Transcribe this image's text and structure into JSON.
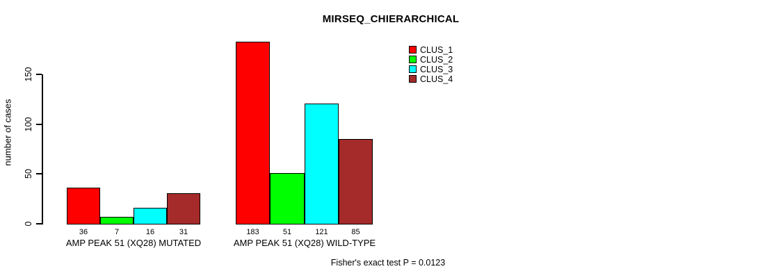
{
  "figure": {
    "title": "MIRSEQ_CHIERARCHICAL",
    "y_axis_label": "number of cases",
    "footnote": "Fisher's exact test P = 0.0123",
    "background_color": "#FFFFFF",
    "text_color": "#000000"
  },
  "chart_data": {
    "type": "bar",
    "title": "MIRSEQ_CHIERARCHICAL",
    "xlabel": "",
    "ylabel": "number of cases",
    "categories": [
      "AMP PEAK 51 (XQ28) MUTATED",
      "AMP PEAK 51 (XQ28) WILD-TYPE"
    ],
    "series": [
      {
        "name": "CLUS_1",
        "color": "#FF0000",
        "values": [
          36,
          183
        ]
      },
      {
        "name": "CLUS_2",
        "color": "#00FF00",
        "values": [
          7,
          51
        ]
      },
      {
        "name": "CLUS_3",
        "color": "#00FFFF",
        "values": [
          16,
          121
        ]
      },
      {
        "name": "CLUS_4",
        "color": "#A52A2A",
        "values": [
          31,
          85
        ]
      }
    ],
    "bar_value_labels": [
      [
        36,
        7,
        16,
        31
      ],
      [
        183,
        51,
        121,
        85
      ]
    ],
    "yticks": [
      0,
      50,
      100,
      150
    ],
    "ytick_labels": [
      "0",
      "50",
      "100",
      "150"
    ],
    "ylim": [
      0,
      150
    ],
    "grid": false,
    "legend": {
      "position": "top-right",
      "entries": [
        {
          "label": "CLUS_1",
          "color": "#FF0000"
        },
        {
          "label": "CLUS_2",
          "color": "#00FF00"
        },
        {
          "label": "CLUS_3",
          "color": "#00FFFF"
        },
        {
          "label": "CLUS_4",
          "color": "#A52A2A"
        }
      ]
    },
    "annotation": "Fisher's exact test P = 0.0123"
  }
}
